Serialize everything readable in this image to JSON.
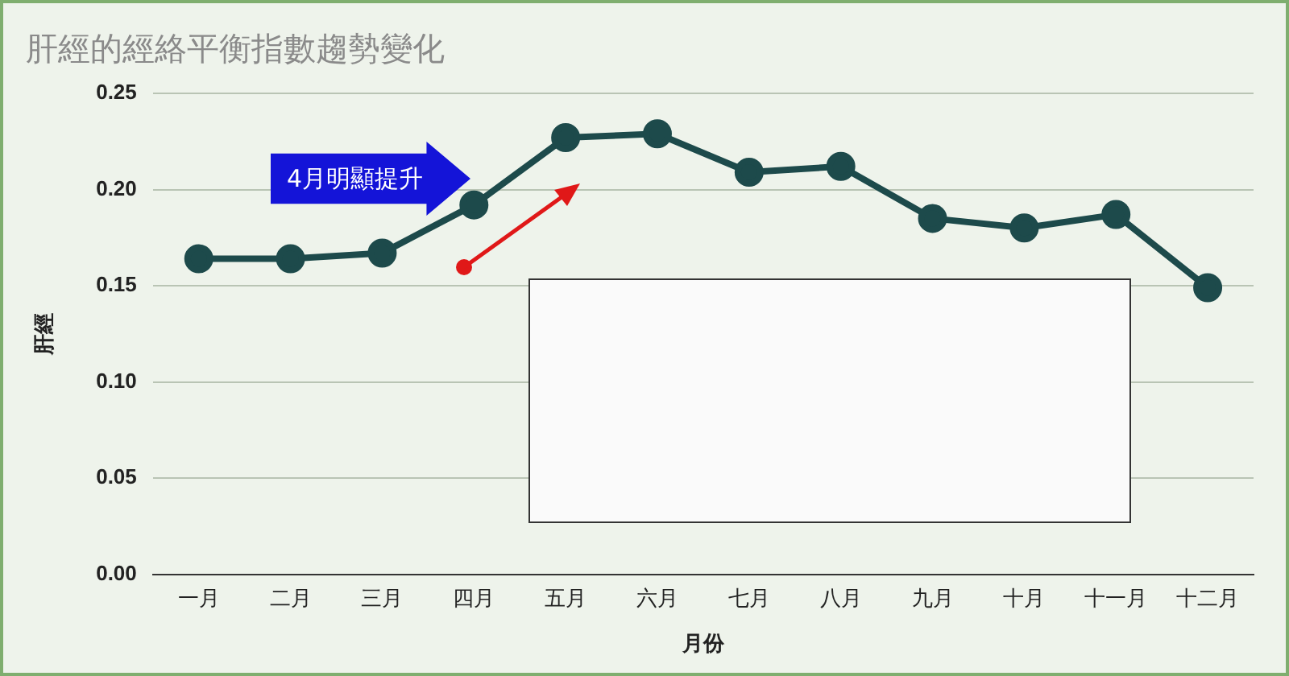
{
  "chart_data": {
    "type": "line",
    "title": "肝經的經絡平衡指數趨勢變化",
    "xlabel": "月份",
    "ylabel": "肝經",
    "categories": [
      "一月",
      "二月",
      "三月",
      "四月",
      "五月",
      "六月",
      "七月",
      "八月",
      "九月",
      "十月",
      "十一月",
      "十二月"
    ],
    "series": [
      {
        "color": "#1d4a4b",
        "values": [
          0.164,
          0.164,
          0.167,
          0.192,
          0.227,
          0.229,
          0.209,
          0.212,
          0.185,
          0.18,
          0.187,
          0.149
        ]
      }
    ],
    "ylim": [
      0,
      0.25
    ],
    "yticks": [
      {
        "value": 0,
        "label": "0.00"
      },
      {
        "value": 0.05,
        "label": "0.05"
      },
      {
        "value": 0.1,
        "label": "0.10"
      },
      {
        "value": 0.15,
        "label": "0.15"
      },
      {
        "value": 0.2,
        "label": "0.20"
      },
      {
        "value": 0.25,
        "label": "0.25"
      }
    ],
    "grid": "y",
    "legend": false,
    "marker": "circle",
    "line_style": "solid",
    "annotations": [
      "4月明顯提升"
    ]
  }
}
